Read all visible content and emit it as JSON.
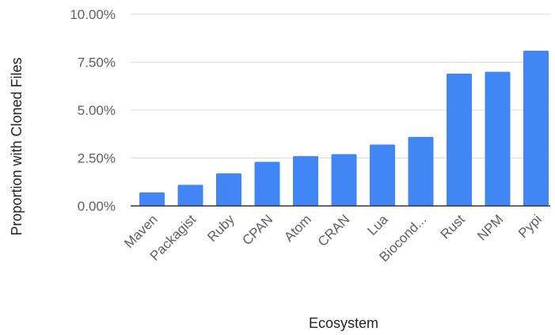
{
  "chart_data": {
    "type": "bar",
    "title": "",
    "xlabel": "Ecosystem",
    "ylabel": "Proportion with Cloned Files",
    "categories": [
      "Maven",
      "Packagist",
      "Ruby",
      "CPAN",
      "Atom",
      "CRAN",
      "Lua",
      "Biocond...",
      "Rust",
      "NPM",
      "Pypi"
    ],
    "values": [
      0.7,
      1.1,
      1.7,
      2.3,
      2.6,
      2.7,
      3.2,
      3.6,
      6.9,
      7.0,
      8.1
    ],
    "ylim": [
      0,
      10
    ],
    "yticks": [
      0,
      2.5,
      5,
      7.5,
      10
    ],
    "ytick_labels": [
      "0.00%",
      "2.50%",
      "5.00%",
      "7.50%",
      "10.00%"
    ],
    "grid": true,
    "legend": "none",
    "colors": {
      "bar": "#4285f4",
      "grid": "#d9d9d9",
      "axis": "#333333"
    }
  }
}
